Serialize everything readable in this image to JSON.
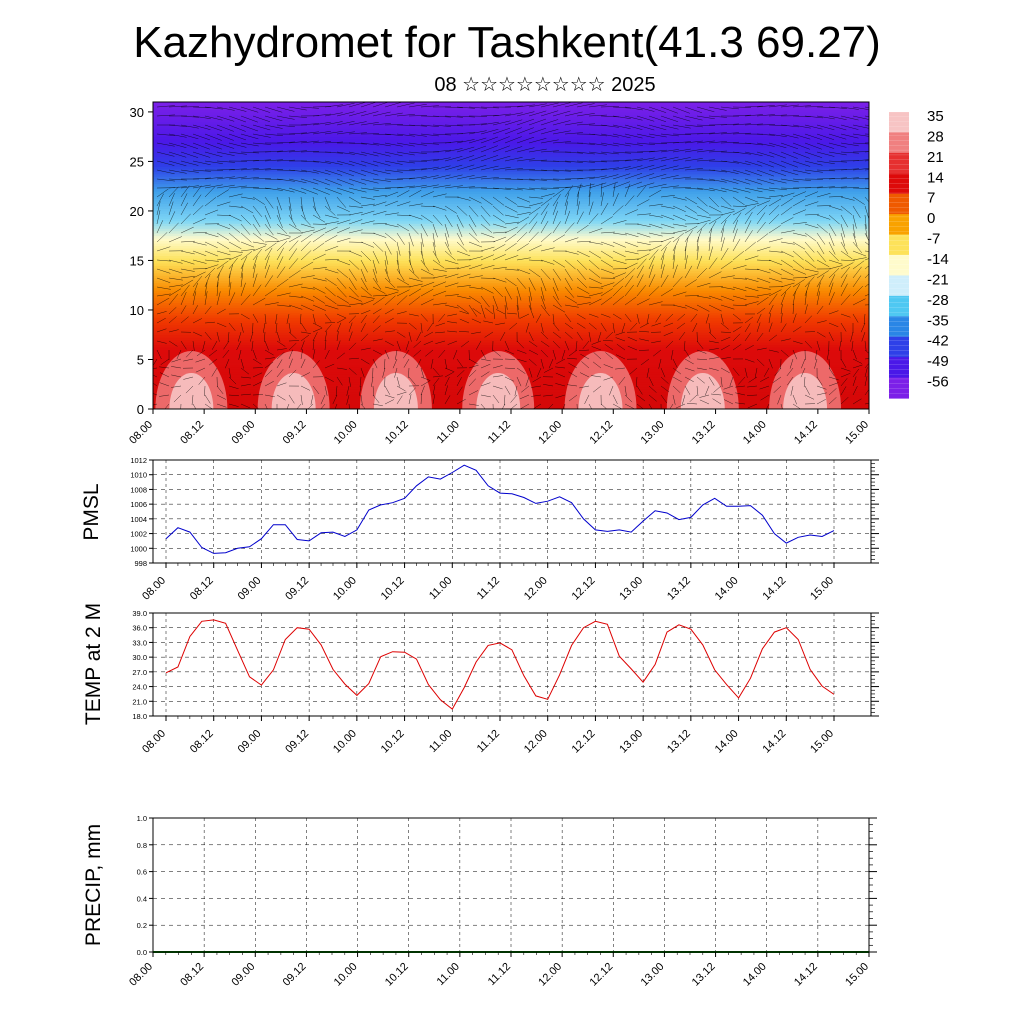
{
  "title": "Kazhydromet for Tashkent(41.3 69.27)",
  "subtitle": "08 ☆☆☆☆☆☆☆☆ 2025",
  "chart_data": [
    {
      "type": "heatmap",
      "x_tick_labels": [
        "08.00",
        "08.12",
        "09.00",
        "09.12",
        "10.00",
        "10.12",
        "11.00",
        "11.12",
        "12.00",
        "12.12",
        "13.00",
        "13.12",
        "14.00",
        "14.12",
        "15.00"
      ],
      "y_ticks": [
        0,
        5,
        10,
        15,
        20,
        25,
        30
      ],
      "ylim": [
        0,
        31
      ],
      "overlay": "wind vectors",
      "colorbar": {
        "labels": [
          "35",
          "28",
          "21",
          "14",
          "7",
          "0",
          "-7",
          "-14",
          "-21",
          "-28",
          "-35",
          "-42",
          "-49",
          "-56"
        ],
        "colors": [
          "#f7c4c4",
          "#f08080",
          "#e63030",
          "#dd0a0a",
          "#ef5a00",
          "#f9a200",
          "#fde25a",
          "#fffbcc",
          "#cfeefb",
          "#4fc8f2",
          "#2a86e6",
          "#2e40e8",
          "#4a18e8",
          "#7c20e8"
        ]
      },
      "description_surface_levels": [
        0,
        30
      ]
    },
    {
      "type": "line",
      "ylabel": "PMSL",
      "x_tick_labels": [
        "08.00",
        "08.12",
        "09.00",
        "09.12",
        "10.00",
        "10.12",
        "11.00",
        "11.12",
        "12.00",
        "12.12",
        "13.00",
        "13.12",
        "14.00",
        "14.12",
        "15.00"
      ],
      "y_tick_labels": [
        "998",
        "1000",
        "1002",
        "1004",
        "1006",
        "1008",
        "1010",
        "1012"
      ],
      "ylim": [
        998,
        1012
      ],
      "grid": true,
      "color": "#0000cc",
      "values": [
        1001.3,
        1002.8,
        1002.2,
        1000.1,
        999.3,
        999.4,
        1000.0,
        1000.2,
        1001.3,
        1003.2,
        1003.2,
        1001.2,
        1001.0,
        1002.1,
        1002.2,
        1001.6,
        1002.5,
        1005.2,
        1005.9,
        1006.2,
        1006.8,
        1008.5,
        1009.7,
        1009.4,
        1010.3,
        1011.3,
        1010.6,
        1008.5,
        1007.5,
        1007.4,
        1006.9,
        1006.1,
        1006.4,
        1007.0,
        1006.2,
        1004.0,
        1002.5,
        1002.3,
        1002.5,
        1002.2,
        1003.7,
        1005.1,
        1004.8,
        1003.9,
        1004.2,
        1005.9,
        1006.8,
        1005.7,
        1005.7,
        1005.8,
        1004.5,
        1002.0,
        1000.7,
        1001.5,
        1001.8,
        1001.6,
        1002.4
      ]
    },
    {
      "type": "line",
      "ylabel": "TEMP at 2 M",
      "x_tick_labels": [
        "08.00",
        "08.12",
        "09.00",
        "09.12",
        "10.00",
        "10.12",
        "11.00",
        "11.12",
        "12.00",
        "12.12",
        "13.00",
        "13.12",
        "14.00",
        "14.12",
        "15.00"
      ],
      "y_tick_labels": [
        "18.0",
        "21.0",
        "24.0",
        "27.0",
        "30.0",
        "33.0",
        "36.0",
        "39.0"
      ],
      "ylim": [
        18,
        39
      ],
      "grid": true,
      "color": "#dd0000",
      "values": [
        26.8,
        28.0,
        34.2,
        37.3,
        37.6,
        36.9,
        31.4,
        26.0,
        24.3,
        27.4,
        33.6,
        36.0,
        35.7,
        32.5,
        27.5,
        24.5,
        22.2,
        24.6,
        30.1,
        31.1,
        31.0,
        29.6,
        24.4,
        21.3,
        19.4,
        23.8,
        29.0,
        32.4,
        32.9,
        31.5,
        26.2,
        22.1,
        21.4,
        26.4,
        32.4,
        36.0,
        37.3,
        36.7,
        30.2,
        27.6,
        24.9,
        28.5,
        35.1,
        36.6,
        35.7,
        32.5,
        27.4,
        24.4,
        21.7,
        25.7,
        31.7,
        35.1,
        36.0,
        33.6,
        27.5,
        24.1,
        22.4
      ]
    },
    {
      "type": "bar",
      "ylabel": "PRECIP, mm",
      "x_tick_labels": [
        "08.00",
        "08.12",
        "09.00",
        "09.12",
        "10.00",
        "10.12",
        "11.00",
        "11.12",
        "12.00",
        "12.12",
        "13.00",
        "13.12",
        "14.00",
        "14.12",
        "15.00"
      ],
      "y_tick_labels": [
        "0.0",
        "0.2",
        "0.4",
        "0.6",
        "0.8",
        "1.0"
      ],
      "ylim": [
        0,
        1
      ],
      "grid": true,
      "values": []
    }
  ]
}
